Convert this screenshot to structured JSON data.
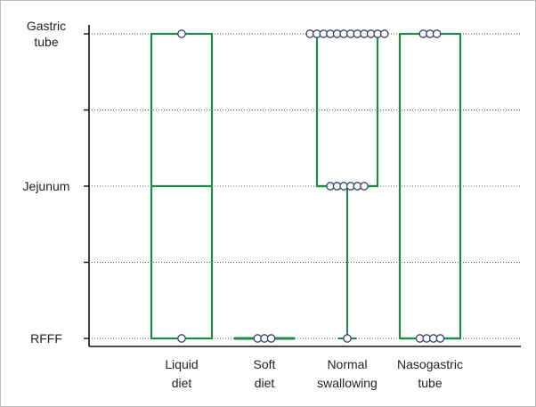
{
  "chart_data": {
    "type": "box",
    "y_levels": [
      "RFFF",
      "Jejunum",
      "Gastric tube"
    ],
    "y_tick_labels": [
      {
        "level": 2,
        "lines": [
          "Gastric",
          "tube"
        ]
      },
      {
        "level": 1,
        "lines": [
          "Jejunum"
        ]
      },
      {
        "level": 0,
        "lines": [
          "RFFF"
        ]
      }
    ],
    "y_minor_ticks": [
      0.5,
      1.5
    ],
    "ylim": [
      0,
      2
    ],
    "grid": "horizontal dotted at levels",
    "box_color": "#1e8a4a",
    "point_fill": "#ffffff",
    "point_stroke": "#3a3f6e",
    "categories": [
      {
        "lines": [
          "Liquid",
          "diet"
        ],
        "min": 0,
        "q1": 0,
        "median": 1,
        "q3": 2,
        "max": 2,
        "points": [
          {
            "y": 2,
            "count": 1
          },
          {
            "y": 0,
            "count": 1
          }
        ]
      },
      {
        "lines": [
          "Soft",
          "diet"
        ],
        "min": 0,
        "q1": 0,
        "median": 0,
        "q3": 0,
        "max": 0,
        "points": [
          {
            "y": 0,
            "count": 3
          }
        ]
      },
      {
        "lines": [
          "Normal",
          "swallowing"
        ],
        "min": 0,
        "q1": 1,
        "median": 1,
        "q3": 2,
        "max": 2,
        "points": [
          {
            "y": 2,
            "count": 12
          },
          {
            "y": 1,
            "count": 6
          },
          {
            "y": 0,
            "count": 1
          }
        ]
      },
      {
        "lines": [
          "Nasogastric",
          "tube"
        ],
        "min": 0,
        "q1": 0,
        "median": 0,
        "q3": 2,
        "max": 2,
        "points": [
          {
            "y": 2,
            "count": 3
          },
          {
            "y": 0,
            "count": 4
          }
        ]
      }
    ]
  }
}
